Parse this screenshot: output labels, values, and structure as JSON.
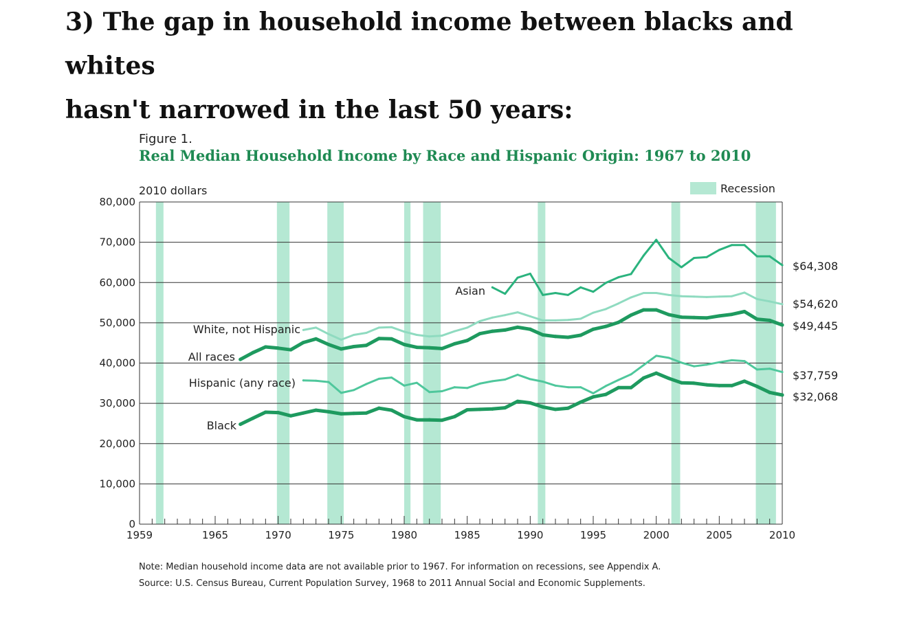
{
  "page": {
    "heading_line1": "3) The gap in household income between blacks and whites",
    "heading_line2": "hasn't narrowed in the last 50 years:"
  },
  "chart_data": {
    "type": "line",
    "figure_label": "Figure 1.",
    "title": "Real Median Household Income by Race and Hispanic Origin: 1967 to 2010",
    "unit_label": "2010 dollars",
    "legend_label": "Recession",
    "legend_placement": "top-right",
    "grid": true,
    "xlim": [
      1959,
      2010
    ],
    "ylim": [
      0,
      80000
    ],
    "x_ticks": [
      1959,
      1965,
      1970,
      1975,
      1980,
      1985,
      1990,
      1995,
      2000,
      2005,
      2010
    ],
    "x_tick_labels": [
      "1959",
      "1965",
      "1970",
      "1975",
      "1980",
      "1985",
      "1990",
      "1995",
      "2000",
      "2005",
      "2010"
    ],
    "y_ticks": [
      0,
      10000,
      20000,
      30000,
      40000,
      50000,
      60000,
      70000,
      80000
    ],
    "y_tick_labels": [
      "0",
      "10,000",
      "20,000",
      "30,000",
      "40,000",
      "50,000",
      "60,000",
      "70,000",
      "80,000"
    ],
    "recessions": [
      [
        1960.3,
        1960.9
      ],
      [
        1969.9,
        1970.9
      ],
      [
        1973.9,
        1975.2
      ],
      [
        1980.0,
        1980.5
      ],
      [
        1981.5,
        1982.9
      ],
      [
        1990.6,
        1991.2
      ],
      [
        2001.2,
        2001.9
      ],
      [
        2007.9,
        2009.5
      ]
    ],
    "colors": {
      "recession": "#b5e8d3",
      "white_not_hispanic": "#8fdbc0",
      "all_races": "#1e9a5f",
      "hispanic": "#4fc79c",
      "black": "#1e9a5f",
      "asian": "#2bb37e",
      "title": "#1f8a53"
    },
    "series": [
      {
        "name": "Asian",
        "end_label": "$64,308",
        "x": [
          1987,
          1988,
          1989,
          1990,
          1991,
          1992,
          1993,
          1994,
          1995,
          1996,
          1997,
          1998,
          1999,
          2000,
          2001,
          2002,
          2003,
          2004,
          2005,
          2006,
          2007,
          2008,
          2009,
          2010
        ],
        "values": [
          58800,
          57200,
          61200,
          62200,
          56900,
          57400,
          56900,
          58800,
          57700,
          59900,
          61300,
          62100,
          66700,
          70600,
          66100,
          63800,
          66100,
          66300,
          68100,
          69300,
          69300,
          66500,
          66500,
          64308
        ]
      },
      {
        "name": "White, not Hispanic",
        "end_label": "$54,620",
        "x": [
          1972,
          1973,
          1974,
          1975,
          1976,
          1977,
          1978,
          1979,
          1980,
          1981,
          1982,
          1983,
          1984,
          1985,
          1986,
          1987,
          1988,
          1989,
          1990,
          1991,
          1992,
          1993,
          1994,
          1995,
          1996,
          1997,
          1998,
          1999,
          2000,
          2001,
          2002,
          2003,
          2004,
          2005,
          2006,
          2007,
          2008,
          2009,
          2010
        ],
        "values": [
          48200,
          48800,
          47200,
          45800,
          47000,
          47500,
          48800,
          48900,
          47800,
          47000,
          46600,
          46800,
          47900,
          48800,
          50400,
          51300,
          51900,
          52600,
          51600,
          50600,
          50600,
          50700,
          51000,
          52500,
          53400,
          54800,
          56300,
          57400,
          57400,
          56900,
          56600,
          56500,
          56400,
          56500,
          56600,
          57500,
          55900,
          55300,
          54620
        ]
      },
      {
        "name": "All races",
        "end_label": "$49,445",
        "x": [
          1967,
          1968,
          1969,
          1970,
          1971,
          1972,
          1973,
          1974,
          1975,
          1976,
          1977,
          1978,
          1979,
          1980,
          1981,
          1982,
          1983,
          1984,
          1985,
          1986,
          1987,
          1988,
          1989,
          1990,
          1991,
          1992,
          1993,
          1994,
          1995,
          1996,
          1997,
          1998,
          1999,
          2000,
          2001,
          2002,
          2003,
          2004,
          2005,
          2006,
          2007,
          2008,
          2009,
          2010
        ],
        "values": [
          40900,
          42600,
          44000,
          43700,
          43300,
          45100,
          46000,
          44600,
          43500,
          44100,
          44400,
          46100,
          46000,
          44600,
          43900,
          43800,
          43600,
          44800,
          45600,
          47300,
          47900,
          48200,
          48900,
          48400,
          47000,
          46600,
          46400,
          46900,
          48400,
          49100,
          50100,
          51900,
          53200,
          53200,
          52000,
          51400,
          51300,
          51200,
          51700,
          52100,
          52800,
          50900,
          50600,
          49445
        ]
      },
      {
        "name": "Hispanic (any race)",
        "end_label": "$37,759",
        "x": [
          1972,
          1973,
          1974,
          1975,
          1976,
          1977,
          1978,
          1979,
          1980,
          1981,
          1982,
          1983,
          1984,
          1985,
          1986,
          1987,
          1988,
          1989,
          1990,
          1991,
          1992,
          1993,
          1994,
          1995,
          1996,
          1997,
          1998,
          1999,
          2000,
          2001,
          2002,
          2003,
          2004,
          2005,
          2006,
          2007,
          2008,
          2009,
          2010
        ],
        "values": [
          35700,
          35600,
          35300,
          32600,
          33300,
          34800,
          36100,
          36400,
          34400,
          35100,
          32800,
          33000,
          34000,
          33800,
          34900,
          35500,
          35900,
          37100,
          36000,
          35400,
          34400,
          34000,
          34000,
          32500,
          34300,
          35800,
          37200,
          39500,
          41800,
          41300,
          40100,
          39200,
          39600,
          40200,
          40700,
          40500,
          38400,
          38600,
          37759
        ]
      },
      {
        "name": "Black",
        "end_label": "$32,068",
        "x": [
          1967,
          1968,
          1969,
          1970,
          1971,
          1972,
          1973,
          1974,
          1975,
          1976,
          1977,
          1978,
          1979,
          1980,
          1981,
          1982,
          1983,
          1984,
          1985,
          1986,
          1987,
          1988,
          1989,
          1990,
          1991,
          1992,
          1993,
          1994,
          1995,
          1996,
          1997,
          1998,
          1999,
          2000,
          2001,
          2002,
          2003,
          2004,
          2005,
          2006,
          2007,
          2008,
          2009,
          2010
        ],
        "values": [
          24800,
          26300,
          27800,
          27700,
          26900,
          27600,
          28300,
          27900,
          27400,
          27500,
          27600,
          28800,
          28300,
          26700,
          25900,
          25900,
          25800,
          26700,
          28400,
          28500,
          28600,
          28900,
          30500,
          30100,
          29100,
          28500,
          28800,
          30300,
          31600,
          32200,
          33900,
          33900,
          36300,
          37500,
          36200,
          35100,
          35000,
          34600,
          34400,
          34400,
          35500,
          34200,
          32700,
          32068
        ]
      }
    ],
    "note": "Note: Median household income data are not available prior to 1967. For information on recessions, see Appendix A.",
    "source": "Source: U.S. Census Bureau, Current Population Survey, 1968 to 2011 Annual Social and Economic Supplements."
  }
}
